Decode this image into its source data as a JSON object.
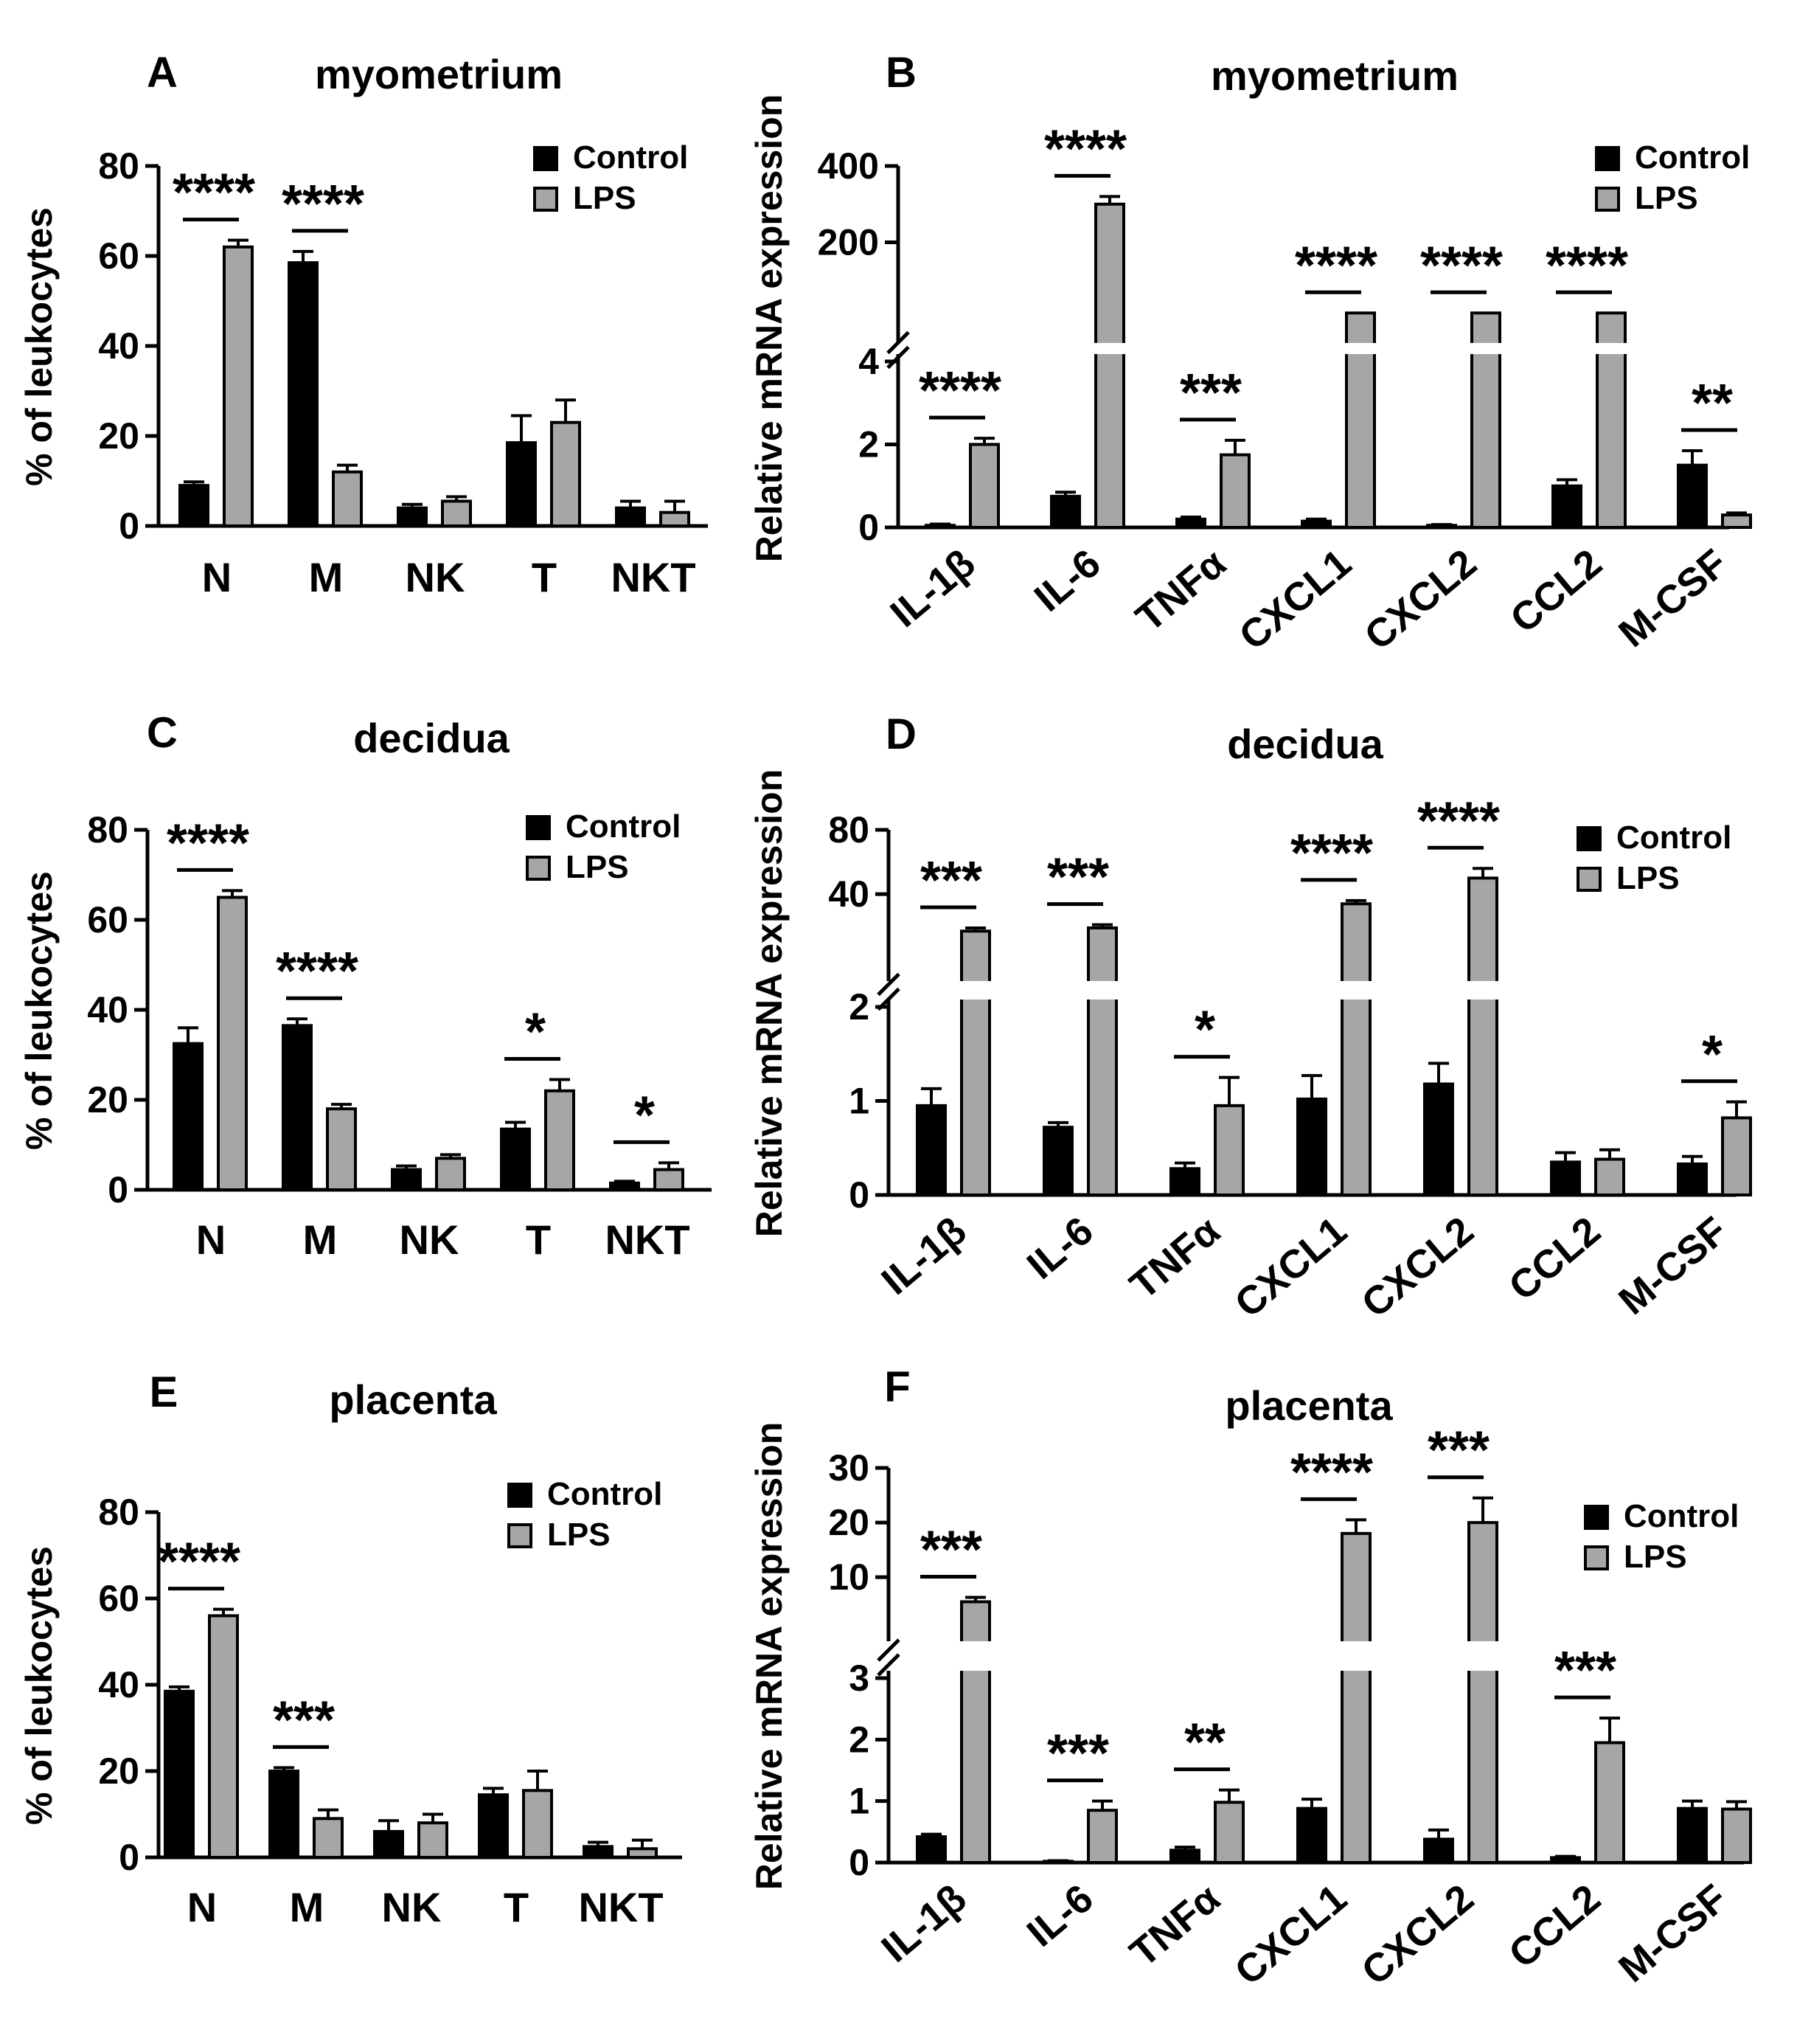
{
  "figure": {
    "legend_control": "Control",
    "legend_lps": "LPS"
  },
  "chart_data": [
    {
      "panel": "A",
      "type": "bar",
      "title": "myometrium",
      "ylabel": "% of leukocytes",
      "ylim": [
        0,
        80
      ],
      "yticks": [
        0,
        20,
        40,
        60,
        80
      ],
      "categories": [
        "N",
        "M",
        "NK",
        "T",
        "NKT"
      ],
      "series": [
        {
          "name": "Control",
          "color": "#000000",
          "values": [
            9,
            58.5,
            4,
            18.5,
            4
          ],
          "errors": [
            0.8,
            2.5,
            0.8,
            6,
            1.5
          ]
        },
        {
          "name": "LPS",
          "color": "#a6a6a6",
          "values": [
            62,
            12,
            5.5,
            23,
            3
          ],
          "errors": [
            1.5,
            1.5,
            1,
            5,
            2.5
          ]
        }
      ],
      "significance": [
        {
          "category": "N",
          "label": "****"
        },
        {
          "category": "M",
          "label": "****"
        }
      ],
      "legend_position": "top-right"
    },
    {
      "panel": "B",
      "type": "bar",
      "title": "myometrium",
      "ylabel": "Relative mRNA expression",
      "broken_axis": true,
      "lower_ylim": [
        0,
        4
      ],
      "lower_yticks": [
        0,
        2,
        4
      ],
      "upper_ylim": [
        0,
        400
      ],
      "upper_yticks": [
        200,
        400
      ],
      "categories": [
        "IL-1β",
        "IL-6",
        "TNFα",
        "CXCL1",
        "CXCL2",
        "CCL2",
        "M-CSF"
      ],
      "series": [
        {
          "name": "Control",
          "color": "#000000",
          "values": [
            0.05,
            0.75,
            0.2,
            0.15,
            0.05,
            1.0,
            1.5
          ],
          "errors": [
            0.03,
            0.1,
            0.05,
            0.05,
            0.02,
            0.15,
            0.35
          ]
        },
        {
          "name": "LPS",
          "color": "#a6a6a6",
          "values": [
            2.0,
            300,
            1.75,
            15,
            15,
            15,
            0.3
          ],
          "errors": [
            0.15,
            20,
            0.35,
            0,
            0,
            0,
            0.05
          ]
        }
      ],
      "significance": [
        {
          "category": "IL-1β",
          "label": "****"
        },
        {
          "category": "IL-6",
          "label": "****"
        },
        {
          "category": "TNFα",
          "label": "***"
        },
        {
          "category": "CXCL1",
          "label": "****"
        },
        {
          "category": "CXCL2",
          "label": "****"
        },
        {
          "category": "CCL2",
          "label": "****"
        },
        {
          "category": "M-CSF",
          "label": "**"
        }
      ],
      "legend_position": "top-right"
    },
    {
      "panel": "C",
      "type": "bar",
      "title": "decidua",
      "ylabel": "% of leukocytes",
      "ylim": [
        0,
        80
      ],
      "yticks": [
        0,
        20,
        40,
        60,
        80
      ],
      "categories": [
        "N",
        "M",
        "NK",
        "T",
        "NKT"
      ],
      "series": [
        {
          "name": "Control",
          "color": "#000000",
          "values": [
            32.5,
            36.5,
            4.5,
            13.5,
            1.5
          ],
          "errors": [
            3.5,
            1.5,
            0.8,
            1.5,
            0.4
          ]
        },
        {
          "name": "LPS",
          "color": "#a6a6a6",
          "values": [
            65,
            18,
            7,
            22,
            4.5
          ],
          "errors": [
            1.5,
            1,
            0.8,
            2.5,
            1.5
          ]
        }
      ],
      "significance": [
        {
          "category": "N",
          "label": "****"
        },
        {
          "category": "M",
          "label": "****"
        },
        {
          "category": "T",
          "label": "*"
        },
        {
          "category": "NKT",
          "label": "*"
        }
      ],
      "legend_position": "top-right"
    },
    {
      "panel": "D",
      "type": "bar",
      "title": "decidua",
      "ylabel": "Relative mRNA expression",
      "broken_axis": true,
      "lower_ylim": [
        0,
        2
      ],
      "lower_yticks": [
        0,
        1,
        2
      ],
      "upper_ylim": [
        0,
        80
      ],
      "upper_yticks": [
        40,
        80
      ],
      "categories": [
        "IL-1β",
        "IL-6",
        "TNFα",
        "CXCL1",
        "CXCL2",
        "CCL2",
        "M-CSF"
      ],
      "series": [
        {
          "name": "Control",
          "color": "#000000",
          "values": [
            0.95,
            0.72,
            0.28,
            1.02,
            1.18,
            0.35,
            0.33
          ],
          "errors": [
            0.18,
            0.05,
            0.06,
            0.25,
            0.22,
            0.1,
            0.08
          ]
        },
        {
          "name": "LPS",
          "color": "#a6a6a6",
          "values": [
            17,
            19,
            0.95,
            34,
            50,
            0.38,
            0.82
          ],
          "errors": [
            2,
            2,
            0.3,
            2,
            6,
            0.1,
            0.17
          ]
        }
      ],
      "significance": [
        {
          "category": "IL-1β",
          "label": "***"
        },
        {
          "category": "IL-6",
          "label": "***"
        },
        {
          "category": "TNFα",
          "label": "*"
        },
        {
          "category": "CXCL1",
          "label": "****"
        },
        {
          "category": "CXCL2",
          "label": "****"
        },
        {
          "category": "M-CSF",
          "label": "*"
        }
      ],
      "legend_position": "top-right"
    },
    {
      "panel": "E",
      "type": "bar",
      "title": "placenta",
      "ylabel": "% of leukocytes",
      "ylim": [
        0,
        80
      ],
      "yticks": [
        0,
        20,
        40,
        60,
        80
      ],
      "categories": [
        "N",
        "M",
        "NK",
        "T",
        "NKT"
      ],
      "series": [
        {
          "name": "Control",
          "color": "#000000",
          "values": [
            38.5,
            20,
            6,
            14.5,
            2.5
          ],
          "errors": [
            1,
            0.8,
            2.5,
            1.5,
            1
          ]
        },
        {
          "name": "LPS",
          "color": "#a6a6a6",
          "values": [
            56,
            9,
            8,
            15.5,
            2
          ],
          "errors": [
            1.5,
            2,
            2,
            4.5,
            2
          ]
        }
      ],
      "significance": [
        {
          "category": "N",
          "label": "****"
        },
        {
          "category": "M",
          "label": "***"
        }
      ],
      "legend_position": "top-right"
    },
    {
      "panel": "F",
      "type": "bar",
      "title": "placenta",
      "ylabel": "Relative mRNA expression",
      "broken_axis": true,
      "lower_ylim": [
        0,
        3
      ],
      "lower_yticks": [
        0,
        1,
        2,
        3
      ],
      "upper_ylim": [
        0,
        30
      ],
      "upper_yticks": [
        10,
        20,
        30
      ],
      "categories": [
        "IL-1β",
        "IL-6",
        "TNFα",
        "CXCL1",
        "CXCL2",
        "CCL2",
        "M-CSF"
      ],
      "series": [
        {
          "name": "Control",
          "color": "#000000",
          "values": [
            0.42,
            0.02,
            0.2,
            0.88,
            0.38,
            0.08,
            0.88
          ],
          "errors": [
            0.04,
            0.01,
            0.05,
            0.15,
            0.15,
            0.02,
            0.12
          ]
        },
        {
          "name": "LPS",
          "color": "#a6a6a6",
          "values": [
            5.5,
            0.85,
            0.98,
            18,
            20,
            1.95,
            0.87
          ],
          "errors": [
            0.8,
            0.15,
            0.2,
            2.5,
            4.5,
            0.4,
            0.12
          ]
        }
      ],
      "significance": [
        {
          "category": "IL-1β",
          "label": "***"
        },
        {
          "category": "IL-6",
          "label": "***"
        },
        {
          "category": "TNFα",
          "label": "**"
        },
        {
          "category": "CXCL1",
          "label": "****"
        },
        {
          "category": "CXCL2",
          "label": "***"
        },
        {
          "category": "CCL2",
          "label": "***"
        }
      ],
      "legend_position": "top-right"
    }
  ]
}
